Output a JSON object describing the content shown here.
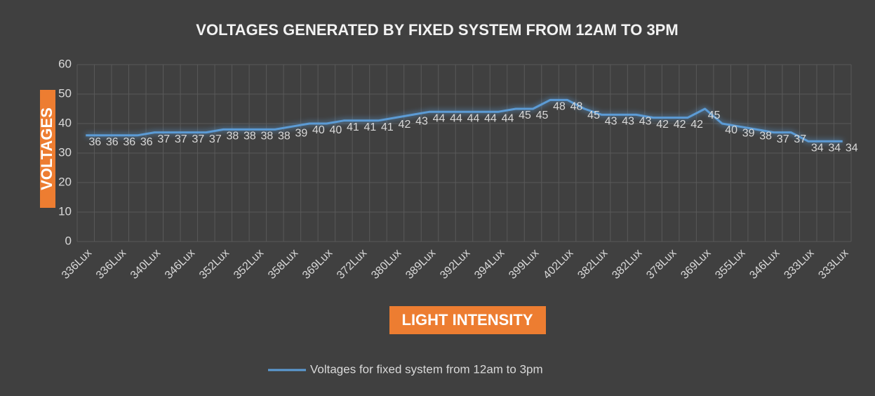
{
  "chart_data": {
    "type": "line",
    "title": "VOLTAGES GENERATED BY FIXED SYSTEM FROM 12AM TO 3PM",
    "x_label": "LIGHT INTENSITY",
    "y_label": "VOLTAGES",
    "categories": [
      "336Lux",
      null,
      "336Lux",
      null,
      "340Lux",
      null,
      "346Lux",
      null,
      "352Lux",
      null,
      "352Lux",
      null,
      "358Lux",
      null,
      "369Lux",
      null,
      "372Lux",
      null,
      "380Lux",
      null,
      "389Lux",
      null,
      "392Lux",
      null,
      "394Lux",
      null,
      "399Lux",
      null,
      "402Lux",
      null,
      "382Lux",
      null,
      "382Lux",
      null,
      "378Lux",
      null,
      "369Lux",
      null,
      "355Lux",
      null,
      "346Lux",
      null,
      "333Lux",
      null,
      "333Lux"
    ],
    "series": [
      {
        "name": "Voltages for fixed system from 12am to 3pm",
        "color": "#5b9bd5",
        "values": [
          36,
          36,
          36,
          36,
          37,
          37,
          37,
          37,
          38,
          38,
          38,
          38,
          39,
          40,
          40,
          41,
          41,
          41,
          42,
          43,
          44,
          44,
          44,
          44,
          44,
          45,
          45,
          48,
          48,
          45,
          43,
          43,
          43,
          42,
          42,
          42,
          45,
          40,
          39,
          38,
          37,
          37,
          34,
          34,
          34
        ]
      }
    ],
    "ylim": [
      0,
      60
    ],
    "yticks": [
      0,
      10,
      20,
      30,
      40,
      50,
      60
    ],
    "grid": true,
    "legend": "bottom"
  }
}
